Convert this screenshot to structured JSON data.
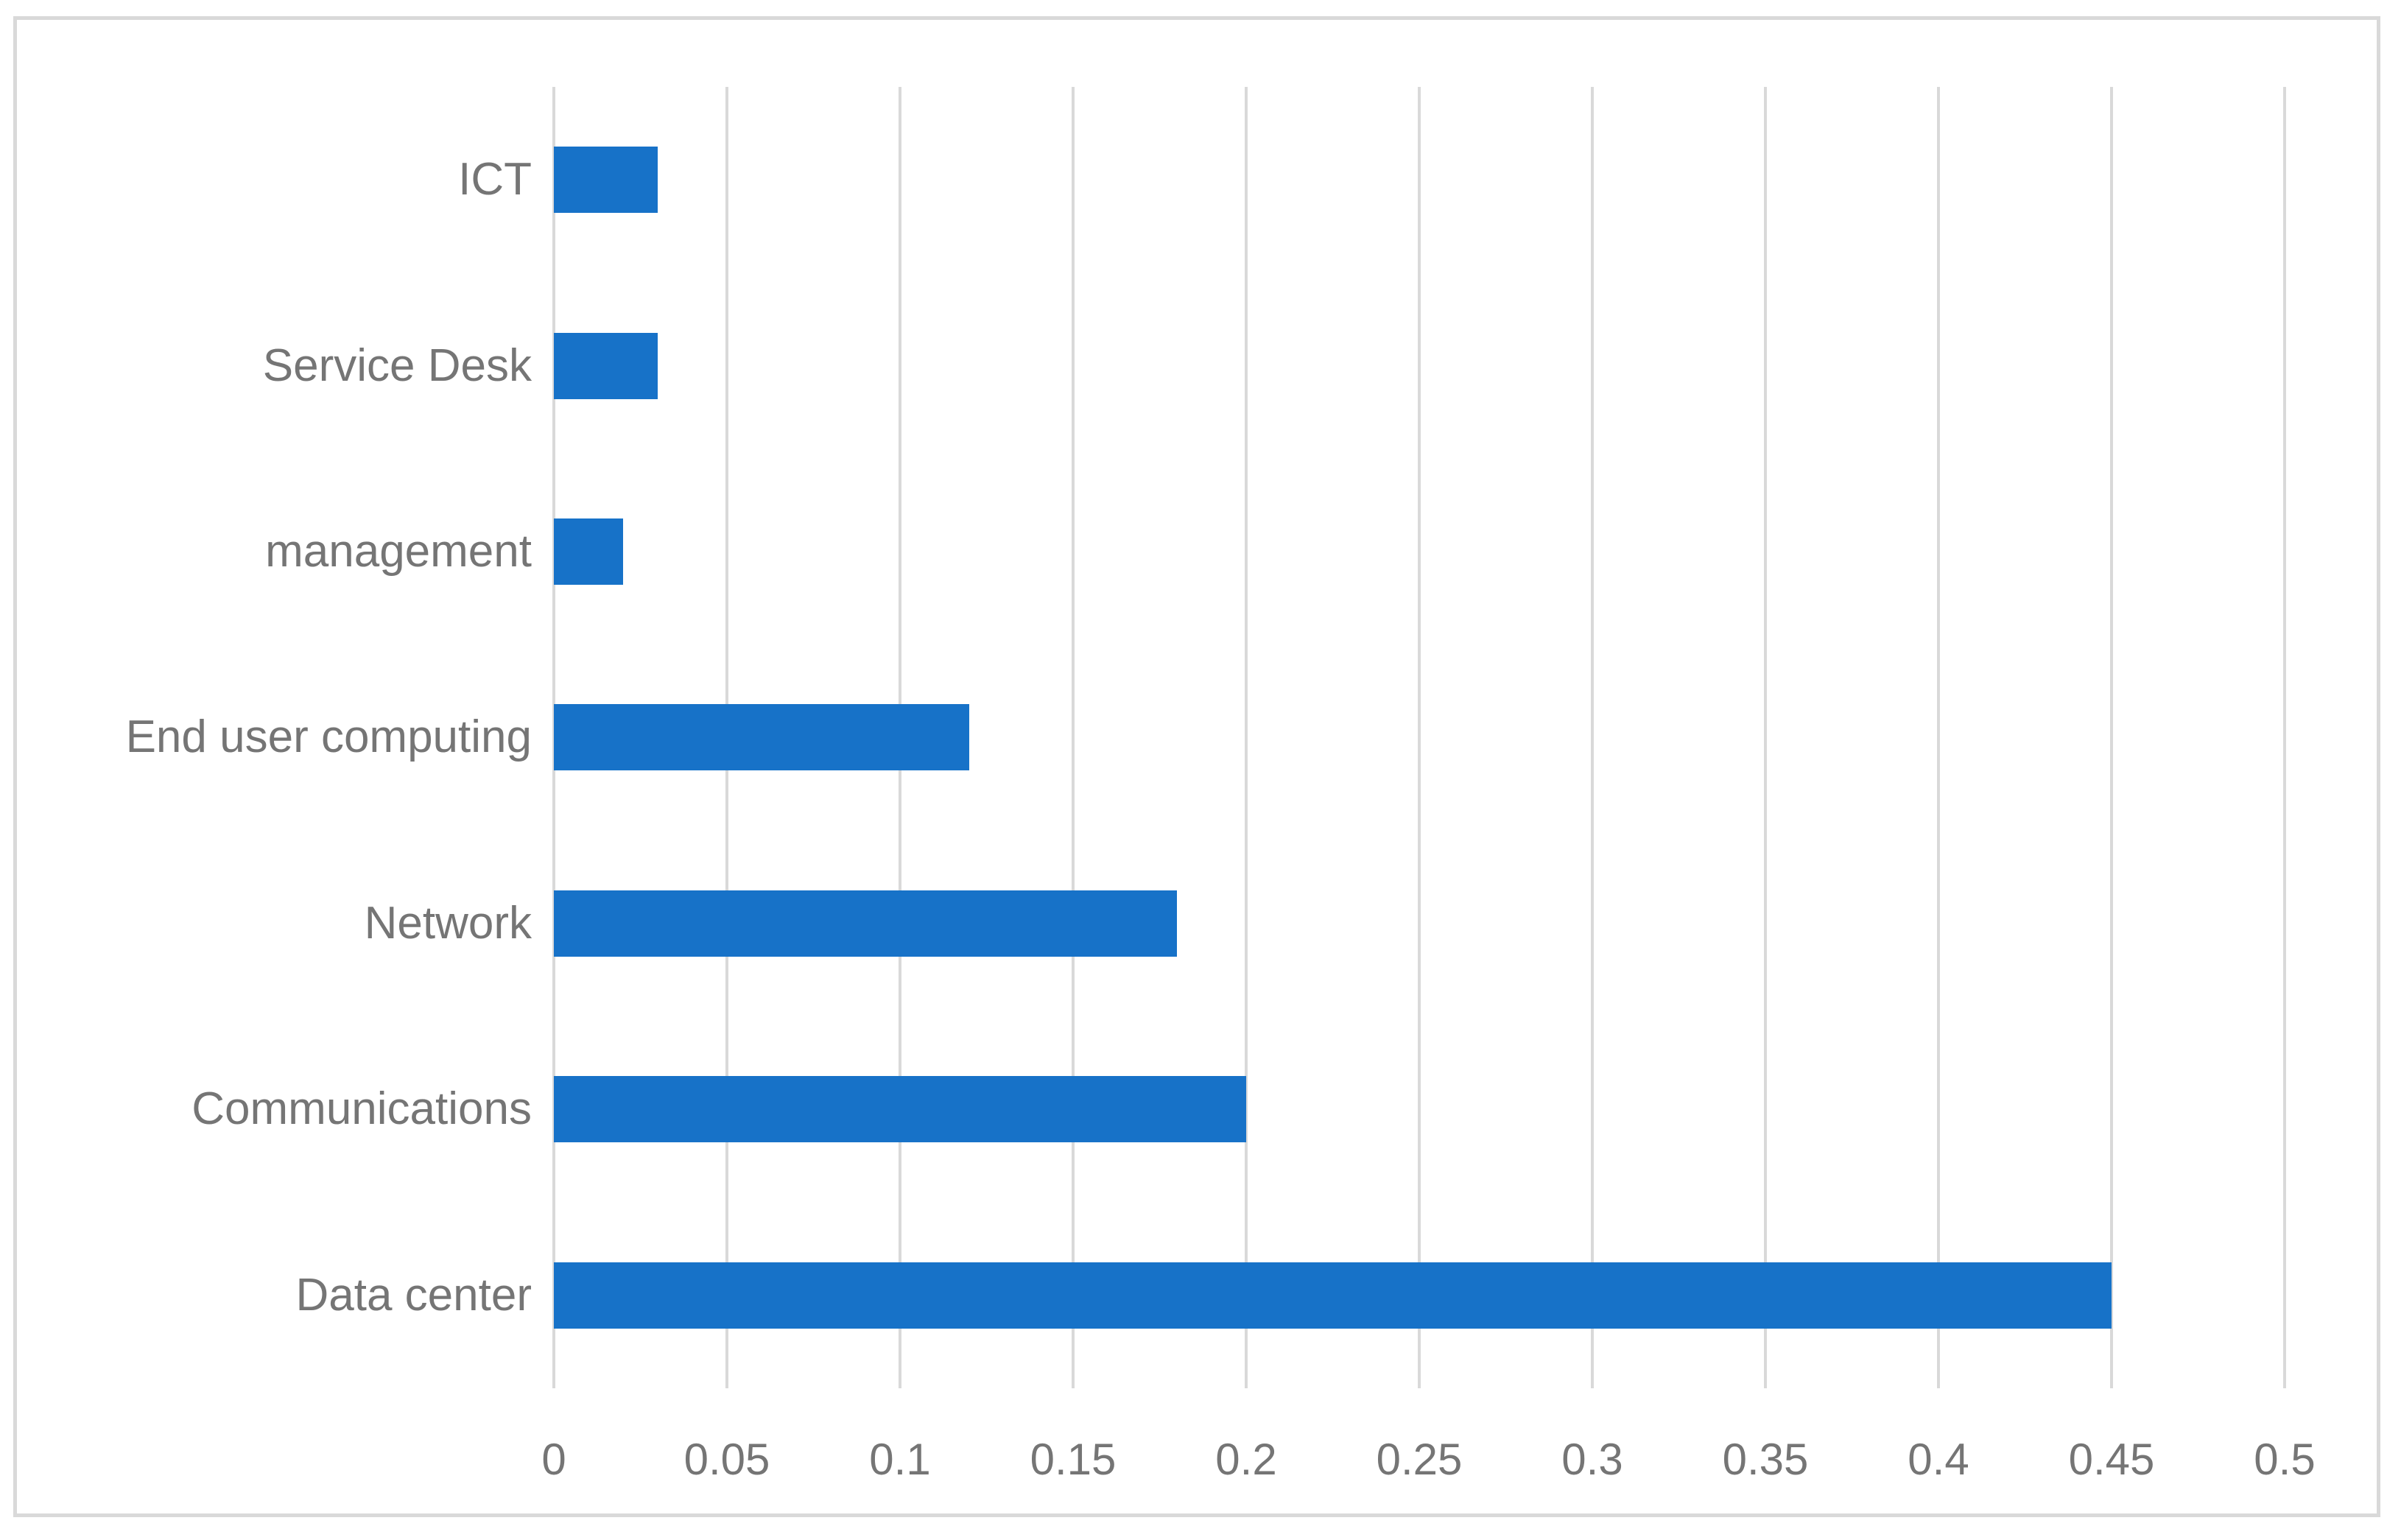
{
  "chart_data": {
    "type": "bar",
    "orientation": "horizontal",
    "title": "",
    "xlabel": "",
    "ylabel": "",
    "categories": [
      "ICT",
      "Service Desk",
      "management",
      "End user computing",
      "Network",
      "Communications",
      "Data center"
    ],
    "values": [
      0.03,
      0.03,
      0.02,
      0.12,
      0.18,
      0.2,
      0.45
    ],
    "xlim": [
      0,
      0.5
    ],
    "xtick_labels": [
      "0",
      "0.05",
      "0.1",
      "0.15",
      "0.2",
      "0.25",
      "0.3",
      "0.35",
      "0.4",
      "0.45",
      "0.5"
    ],
    "grid": "vertical-only",
    "legend": false,
    "colors": {
      "bar": "#1772C8",
      "gridline": "#D9D9D9",
      "border": "#D9D9D9",
      "text": "#757575",
      "background": "#FFFFFF"
    }
  }
}
